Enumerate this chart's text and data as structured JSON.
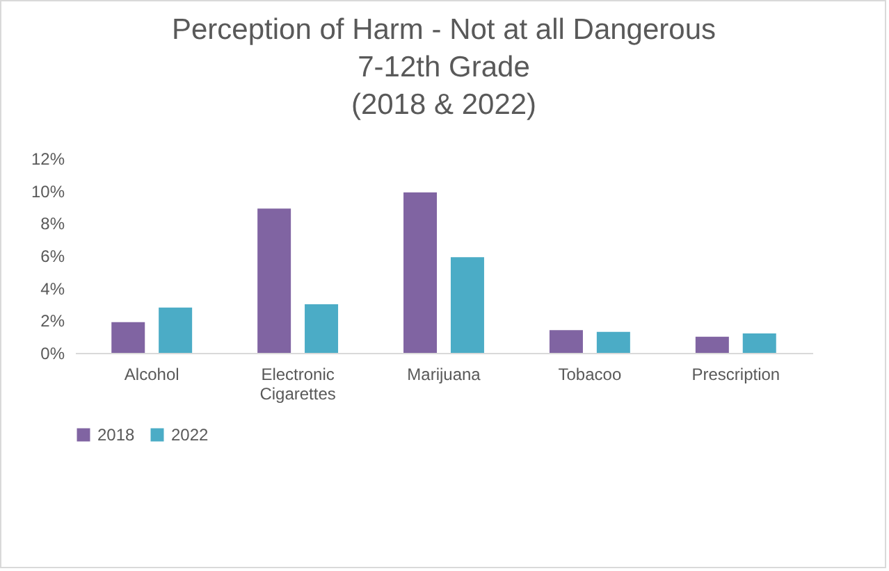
{
  "chart_data": {
    "type": "bar",
    "title": "Perception of Harm - Not at all Dangerous\n7-12th Grade\n(2018 & 2022)",
    "categories": [
      "Alcohol",
      "Electronic Cigarettes",
      "Marijuana",
      "Tobacoo",
      "Prescription"
    ],
    "series": [
      {
        "name": "2018",
        "color": "#8064a2",
        "values": [
          1.9,
          8.9,
          9.9,
          1.4,
          1.0
        ]
      },
      {
        "name": "2022",
        "color": "#4bacc6",
        "values": [
          2.8,
          3.0,
          5.9,
          1.3,
          1.2
        ]
      }
    ],
    "ylim": [
      0,
      12
    ],
    "yticks": [
      {
        "value": 0,
        "label": "0%"
      },
      {
        "value": 2,
        "label": "2%"
      },
      {
        "value": 4,
        "label": "4%"
      },
      {
        "value": 6,
        "label": "6%"
      },
      {
        "value": 8,
        "label": "8%"
      },
      {
        "value": 10,
        "label": "10%"
      },
      {
        "value": 12,
        "label": "12%"
      }
    ],
    "grid": false,
    "legend": "bottom"
  }
}
